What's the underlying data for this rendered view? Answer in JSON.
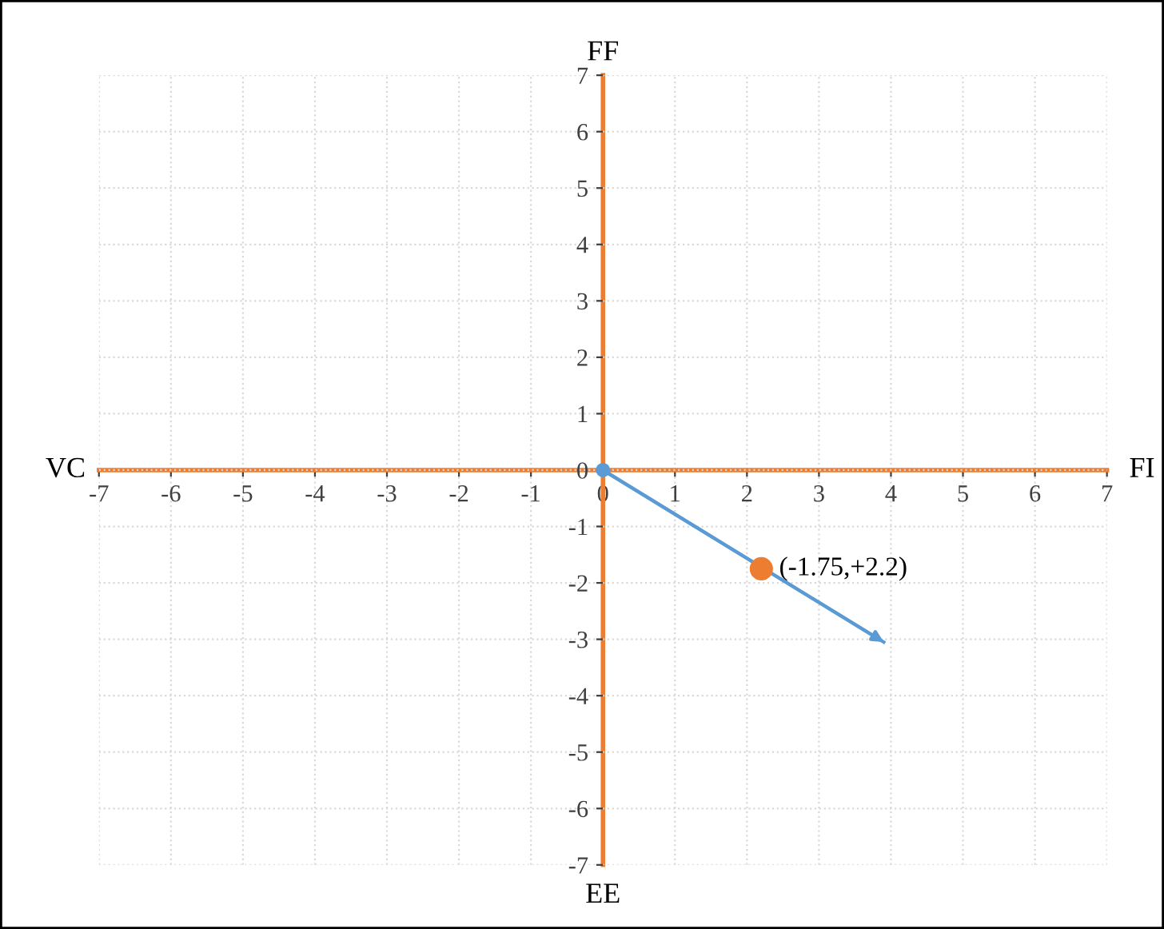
{
  "chart_data": {
    "type": "scatter",
    "xlim": [
      -7,
      7
    ],
    "ylim": [
      -7,
      7
    ],
    "xticks": [
      -7,
      -6,
      -5,
      -4,
      -3,
      -2,
      -1,
      0,
      1,
      2,
      3,
      4,
      5,
      6,
      7
    ],
    "yticks": [
      -7,
      -6,
      -5,
      -4,
      -3,
      -2,
      -1,
      0,
      1,
      2,
      3,
      4,
      5,
      6,
      7
    ],
    "grid": true,
    "legend": false,
    "series": [
      {
        "type": "line",
        "color": "#5b9bd5",
        "x": [
          0,
          3.9
        ],
        "values": [
          0,
          -3.05
        ],
        "marker": "none"
      },
      {
        "color": "#5b9bd5",
        "x": [
          0
        ],
        "values": [
          0
        ],
        "marker": "circle"
      },
      {
        "color": "#ed7d31",
        "x": [
          2.2
        ],
        "values": [
          -1.75
        ],
        "marker": "circle"
      }
    ],
    "annotations": [
      {
        "text": "(-1.75,+2.2)",
        "x": 2.2,
        "y": -1.75
      },
      "VC",
      "FI",
      "FF",
      "EE"
    ]
  }
}
